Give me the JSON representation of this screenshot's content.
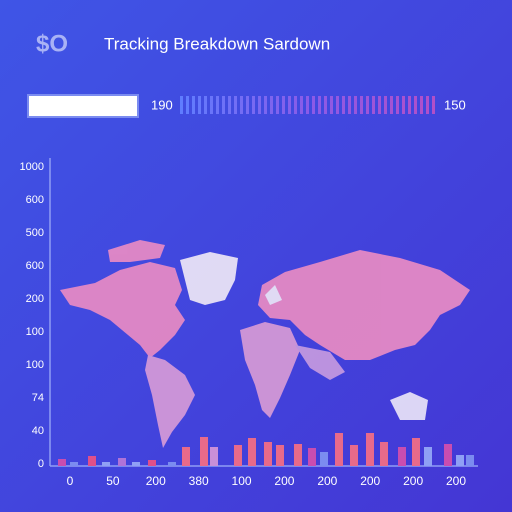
{
  "header": {
    "logo": "$O",
    "title": "Tracking Breakdown Sardown"
  },
  "slider": {
    "left_value": "190",
    "right_value": "150"
  },
  "axis": {
    "y_labels": [
      "1000",
      "600",
      "500",
      "600",
      "200",
      "100",
      "100",
      "74",
      "40",
      "0"
    ],
    "x_labels": [
      "0",
      "50",
      "200",
      "380",
      "100",
      "200",
      "200",
      "200",
      "200",
      "200"
    ]
  }
}
